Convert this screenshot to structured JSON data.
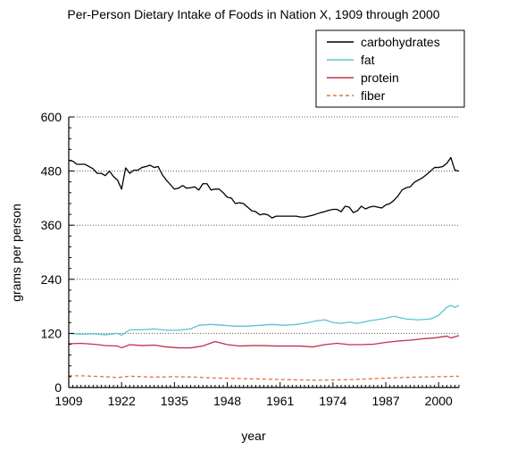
{
  "chart_data": {
    "type": "line",
    "title": "Per-Person Dietary Intake of Foods in Nation X, 1909 through 2000",
    "xlabel": "year",
    "ylabel": "grams per person",
    "xlim": [
      1909,
      2005
    ],
    "ylim": [
      0,
      600
    ],
    "xticks": [
      1909,
      1922,
      1935,
      1948,
      1961,
      1974,
      1987,
      2000
    ],
    "yticks": [
      0,
      120,
      240,
      360,
      480,
      600
    ],
    "grid": "horizontal dotted",
    "legend_position": "top-right",
    "series": [
      {
        "name": "carbohydrates",
        "color": "#000000",
        "dash": "solid",
        "x": [
          1909,
          1910,
          1911,
          1912,
          1913,
          1914,
          1915,
          1916,
          1917,
          1918,
          1919,
          1920,
          1921,
          1922,
          1923,
          1924,
          1925,
          1926,
          1927,
          1928,
          1929,
          1930,
          1931,
          1932,
          1933,
          1934,
          1935,
          1936,
          1937,
          1938,
          1939,
          1940,
          1941,
          1942,
          1943,
          1944,
          1945,
          1946,
          1947,
          1948,
          1949,
          1950,
          1951,
          1952,
          1953,
          1954,
          1955,
          1956,
          1957,
          1958,
          1959,
          1960,
          1961,
          1962,
          1963,
          1964,
          1965,
          1966,
          1967,
          1968,
          1969,
          1970,
          1971,
          1972,
          1973,
          1974,
          1975,
          1976,
          1977,
          1978,
          1979,
          1980,
          1981,
          1982,
          1983,
          1984,
          1985,
          1986,
          1987,
          1988,
          1989,
          1990,
          1991,
          1992,
          1993,
          1994,
          1995,
          1996,
          1997,
          1998,
          1999,
          2000,
          2001,
          2002,
          2003,
          2004,
          2005
        ],
        "values": [
          504,
          502,
          495,
          495,
          495,
          490,
          485,
          475,
          475,
          470,
          480,
          468,
          460,
          440,
          487,
          475,
          482,
          482,
          488,
          490,
          493,
          488,
          490,
          472,
          460,
          450,
          440,
          442,
          448,
          442,
          443,
          445,
          438,
          452,
          452,
          438,
          440,
          440,
          432,
          422,
          420,
          408,
          410,
          408,
          400,
          392,
          390,
          383,
          385,
          383,
          376,
          380,
          380,
          380,
          380,
          380,
          380,
          378,
          378,
          380,
          382,
          385,
          388,
          390,
          393,
          395,
          395,
          390,
          402,
          400,
          388,
          392,
          402,
          396,
          400,
          402,
          400,
          398,
          405,
          408,
          415,
          425,
          438,
          443,
          445,
          455,
          460,
          465,
          472,
          480,
          488,
          488,
          490,
          497,
          510,
          482,
          480
        ]
      },
      {
        "name": "fat",
        "color": "#58c4d3",
        "dash": "solid",
        "x": [
          1909,
          1912,
          1915,
          1918,
          1921,
          1922,
          1924,
          1927,
          1930,
          1933,
          1936,
          1939,
          1941,
          1944,
          1947,
          1950,
          1953,
          1956,
          1959,
          1962,
          1965,
          1968,
          1970,
          1972,
          1974,
          1976,
          1978,
          1980,
          1983,
          1986,
          1989,
          1992,
          1995,
          1998,
          2000,
          2002,
          2003,
          2004,
          2005
        ],
        "values": [
          120,
          118,
          119,
          117,
          120,
          116,
          128,
          128,
          130,
          127,
          127,
          130,
          138,
          140,
          138,
          136,
          136,
          138,
          140,
          138,
          140,
          144,
          148,
          150,
          144,
          142,
          145,
          142,
          148,
          152,
          158,
          152,
          150,
          152,
          160,
          178,
          182,
          178,
          182
        ]
      },
      {
        "name": "protein",
        "color": "#c0314a",
        "dash": "solid",
        "x": [
          1909,
          1912,
          1915,
          1918,
          1921,
          1922,
          1924,
          1927,
          1930,
          1933,
          1936,
          1939,
          1942,
          1945,
          1948,
          1951,
          1954,
          1957,
          1960,
          1963,
          1966,
          1969,
          1972,
          1975,
          1978,
          1981,
          1984,
          1987,
          1990,
          1993,
          1996,
          1999,
          2002,
          2003,
          2005
        ],
        "values": [
          97,
          98,
          96,
          93,
          92,
          88,
          95,
          93,
          94,
          90,
          88,
          88,
          92,
          102,
          95,
          92,
          93,
          93,
          92,
          92,
          92,
          90,
          95,
          98,
          95,
          95,
          96,
          100,
          103,
          105,
          108,
          110,
          114,
          110,
          115
        ]
      },
      {
        "name": "fiber",
        "color": "#e07040",
        "dash": "dashed",
        "x": [
          1909,
          1912,
          1915,
          1918,
          1921,
          1924,
          1927,
          1930,
          1935,
          1940,
          1945,
          1950,
          1955,
          1960,
          1965,
          1970,
          1975,
          1980,
          1985,
          1990,
          1995,
          2000,
          2005
        ],
        "values": [
          26,
          26,
          25,
          24,
          22,
          25,
          24,
          23,
          24,
          23,
          21,
          20,
          19,
          18,
          17,
          16,
          17,
          18,
          20,
          22,
          23,
          24,
          25
        ]
      }
    ]
  }
}
